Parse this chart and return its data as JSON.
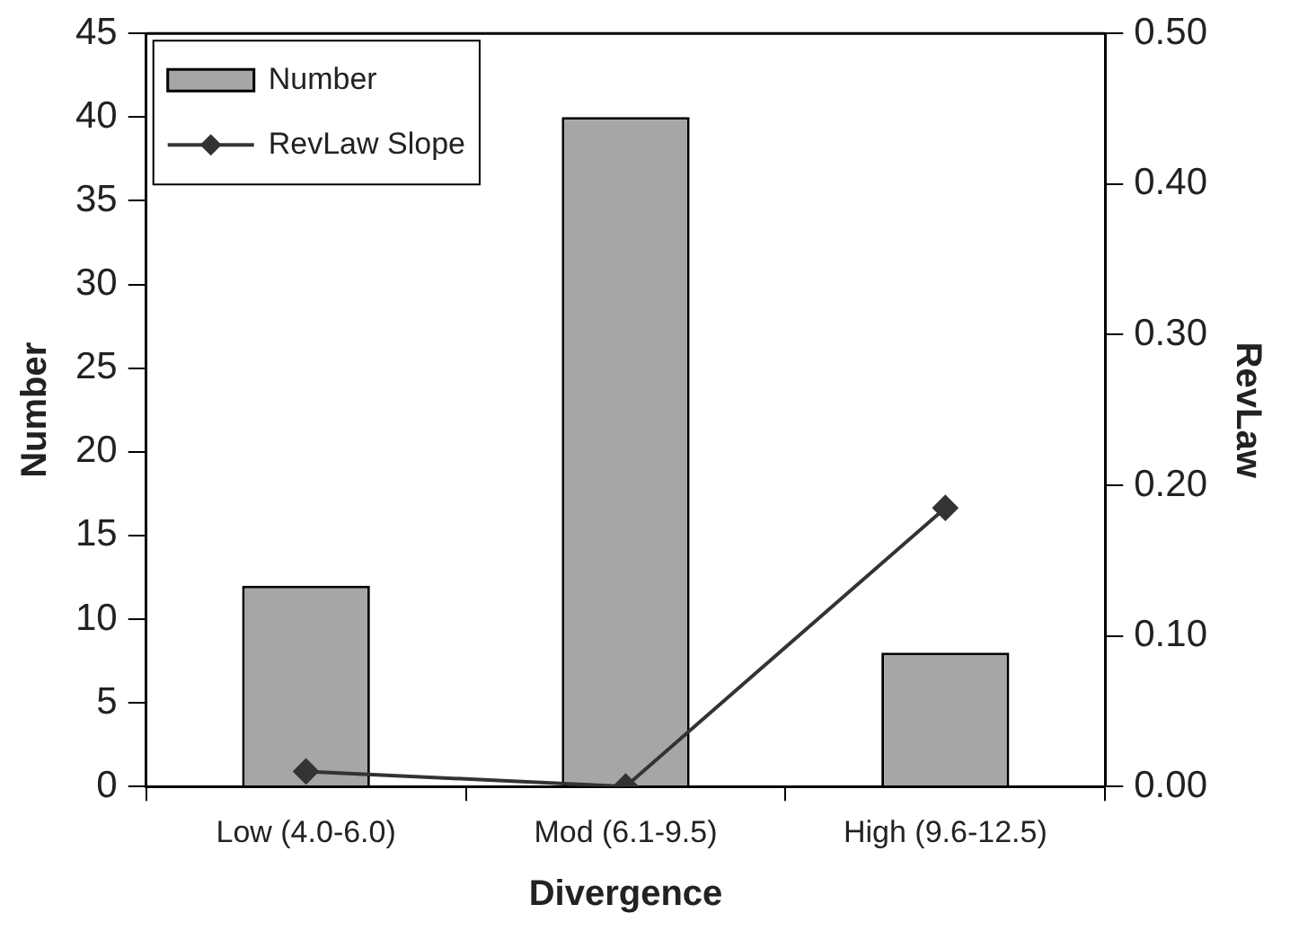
{
  "chart_data": {
    "type": "bar",
    "xlabel": "Divergence",
    "ylabel": "Number",
    "y2label": "RevLaw",
    "categories": [
      "Low (4.0-6.0)",
      "Mod (6.1-9.5)",
      "High (9.6-12.5)"
    ],
    "series": [
      {
        "name": "Number",
        "color": "#a6a6a6",
        "values": [
          12,
          40,
          8
        ]
      },
      {
        "name": "RevLaw Slope",
        "type": "line",
        "axis": "y2",
        "color": "#333333",
        "marker": "diamond",
        "values": [
          0.01,
          0.0,
          0.185
        ]
      }
    ],
    "ylim": [
      0,
      45
    ],
    "yticks": [
      0,
      5,
      10,
      15,
      20,
      25,
      30,
      35,
      40,
      45
    ],
    "y2lim": [
      0,
      0.5
    ],
    "y2ticks": [
      {
        "value": 0,
        "label": "0.00"
      },
      {
        "value": 0.1,
        "label": "0.10"
      },
      {
        "value": 0.2,
        "label": "0.20"
      },
      {
        "value": 0.3,
        "label": "0.30"
      },
      {
        "value": 0.4,
        "label": "0.40"
      },
      {
        "value": 0.5,
        "label": "0.50"
      }
    ],
    "grid": false,
    "legend": "top left"
  }
}
